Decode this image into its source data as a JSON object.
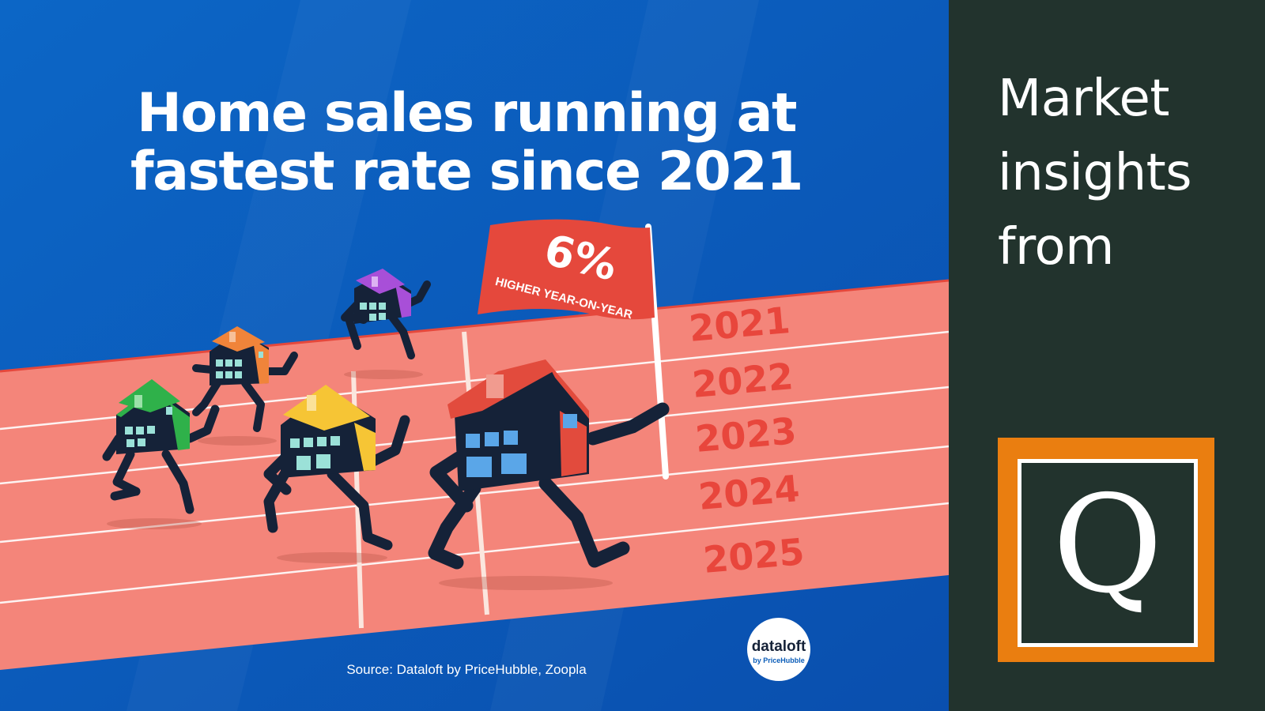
{
  "infographic": {
    "headline_line1": "Home sales running at",
    "headline_line2": "fastest rate since 2021",
    "flag_value": "6%",
    "flag_caption": "HIGHER YEAR-ON-YEAR",
    "lane_years": [
      "2021",
      "2022",
      "2023",
      "2024",
      "2025"
    ],
    "source": "Source: Dataloft by PriceHubble, Zoopla",
    "badge": {
      "name": "dataloft",
      "tagline": "by PriceHubble"
    },
    "colors": {
      "background": "#0a5cb8",
      "track": "#f4857a",
      "flag": "#e5483c",
      "year_text": "#e8463c",
      "figure": "#152238",
      "house_green": "#2fb14a",
      "house_orange": "#f0843a",
      "house_purple": "#a84fd8",
      "house_yellow": "#f6c535",
      "house_red": "#e24b3d"
    }
  },
  "side_panel": {
    "title_line1": "Market",
    "title_line2": "insights",
    "title_line3": "from",
    "logo_letter": "Q",
    "colors": {
      "background": "#22332d",
      "logo_frame": "#ea7e10"
    }
  }
}
